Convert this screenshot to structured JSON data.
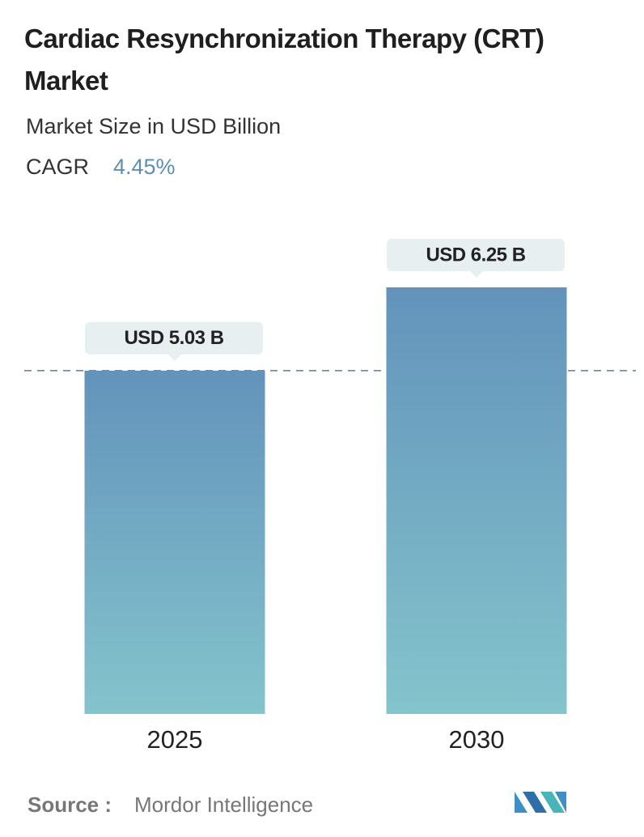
{
  "chart_data": {
    "type": "bar",
    "title": "Cardiac Resynchronization Therapy (CRT) Market",
    "subtitle": "Market Size in USD Billion",
    "cagr_label": "CAGR",
    "cagr": "4.45%",
    "categories": [
      "2025",
      "2030"
    ],
    "values": [
      5.03,
      6.25
    ],
    "value_labels": [
      "USD 5.03 B",
      "USD 6.25 B"
    ],
    "color": [
      "#6393bb",
      "#84c4cc"
    ],
    "source_label": "Source :",
    "source": "Mordor Intelligence"
  }
}
